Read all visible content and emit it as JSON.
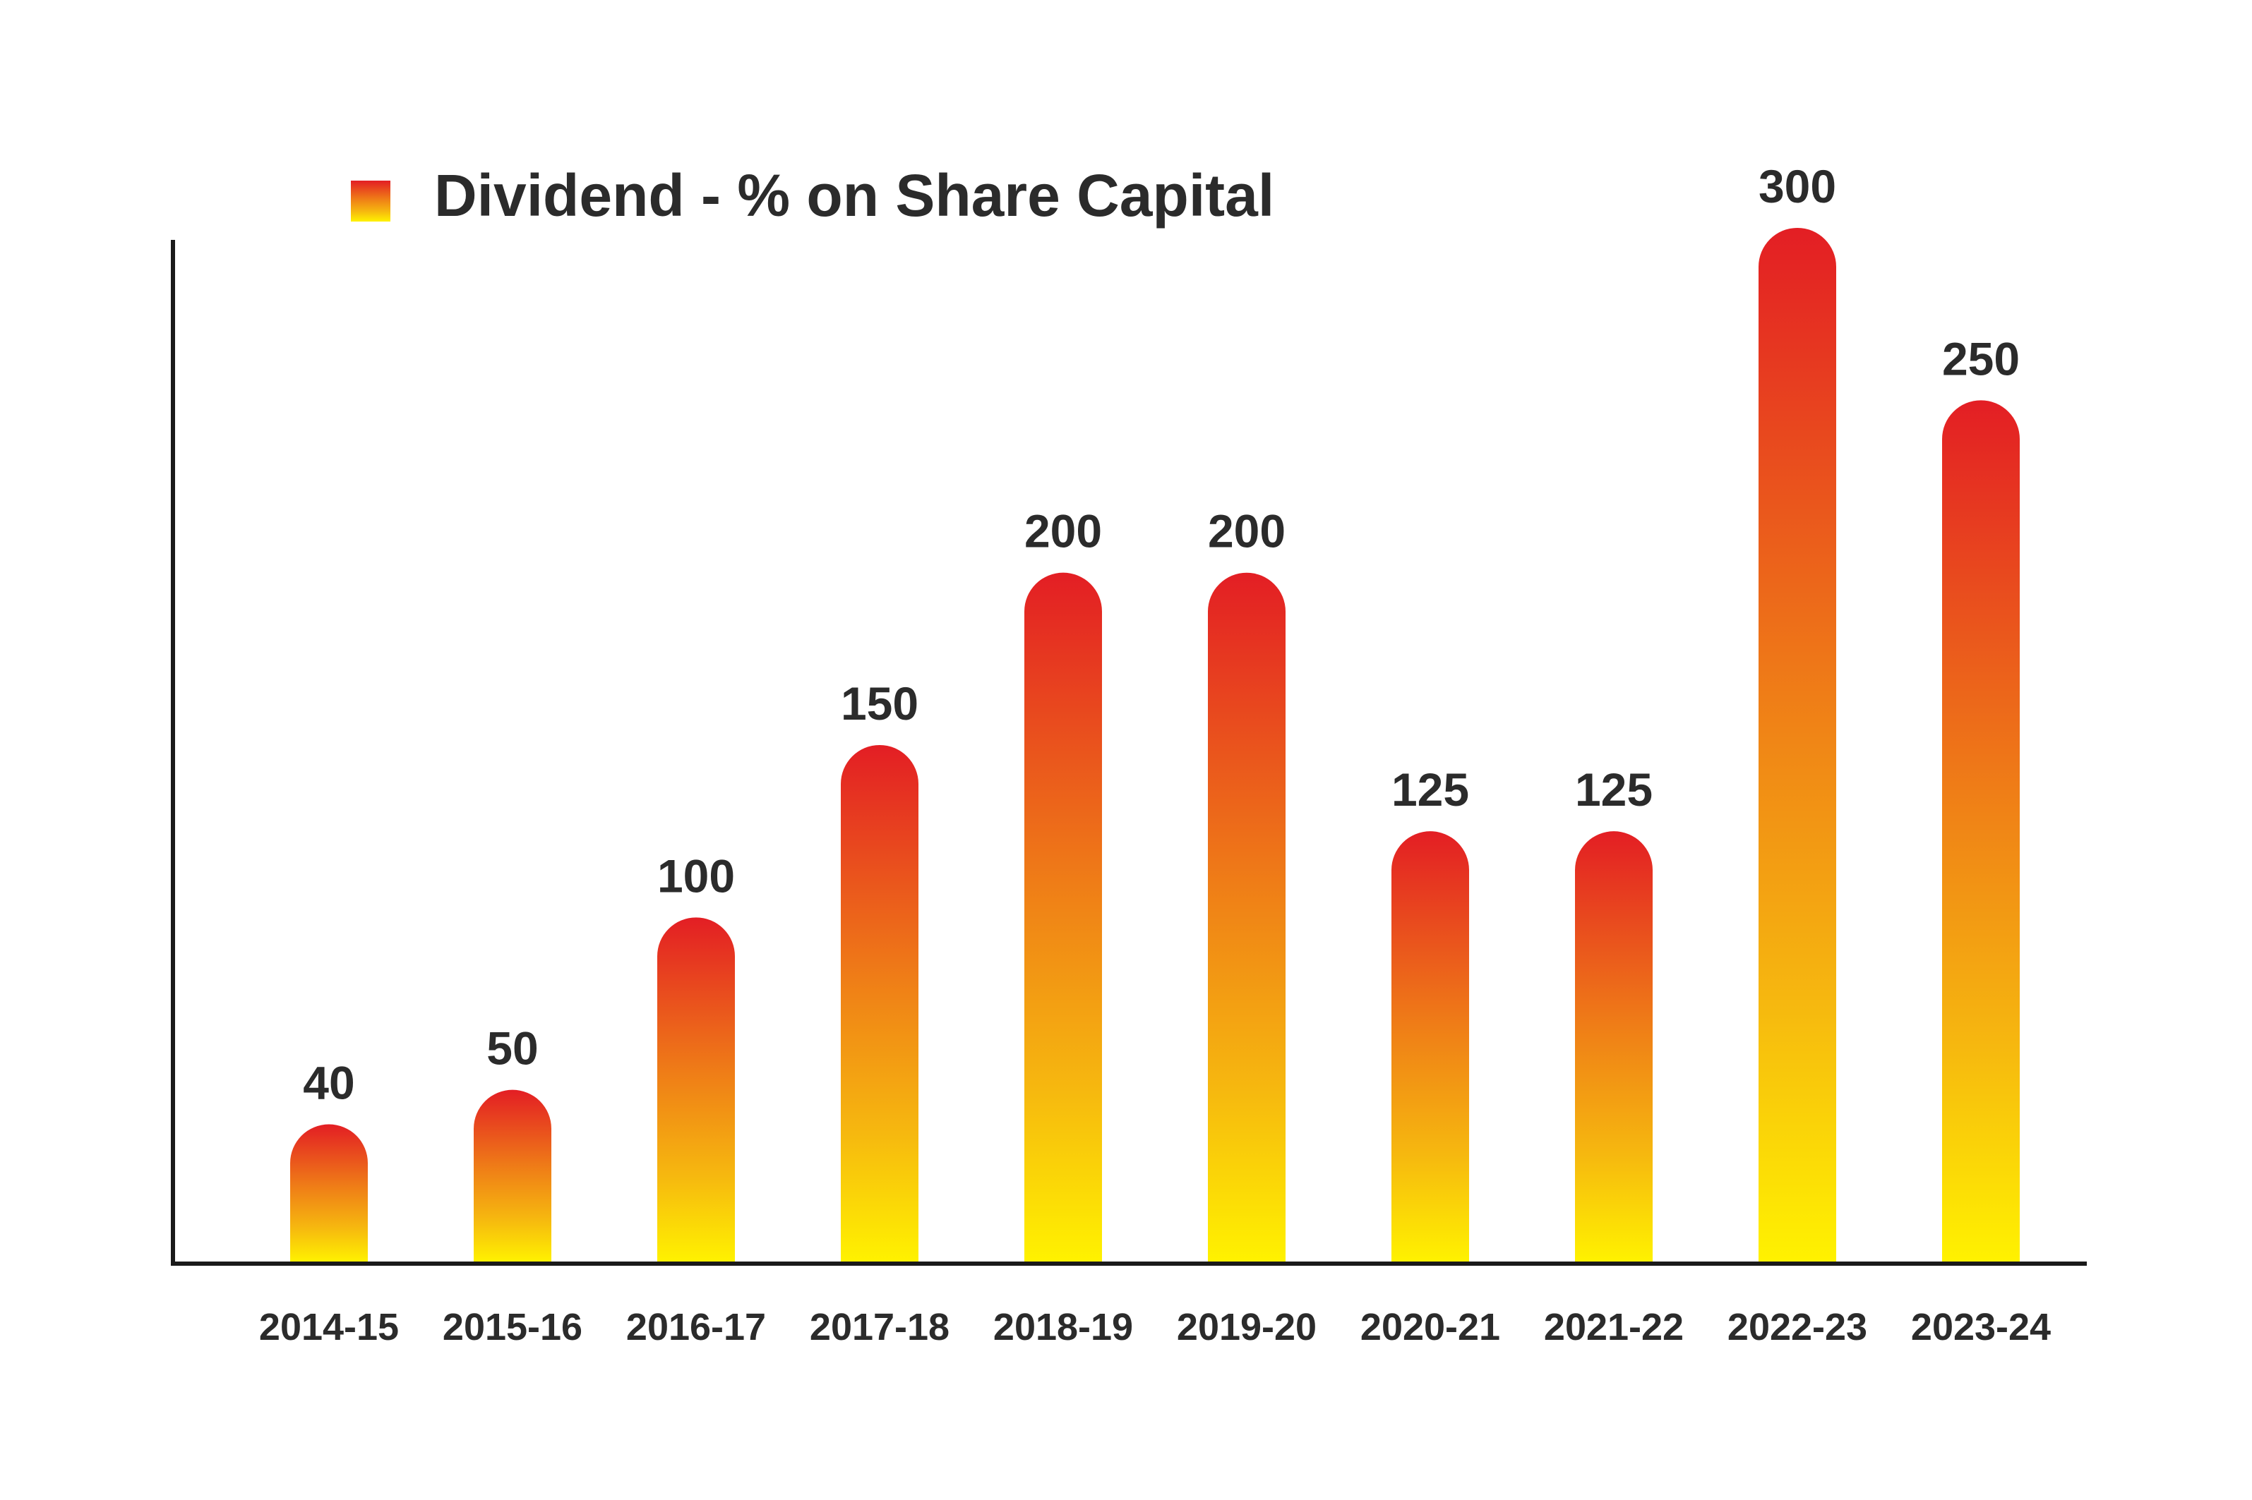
{
  "chart_data": {
    "type": "bar",
    "legend": [
      {
        "label": "Dividend - % on Share Capital"
      }
    ],
    "categories": [
      "2014-15",
      "2015-16",
      "2016-17",
      "2017-18",
      "2018-19",
      "2019-20",
      "2020-21",
      "2021-22",
      "2022-23",
      "2023-24"
    ],
    "series": [
      {
        "name": "Dividend - % on Share Capital",
        "values": [
          40,
          50,
          100,
          150,
          200,
          200,
          125,
          125,
          300,
          250
        ]
      }
    ],
    "data_labels": [
      "40",
      "50",
      "100",
      "150",
      "200",
      "200",
      "125",
      "125",
      "300",
      "250"
    ],
    "ylim": [
      0,
      300
    ],
    "grid": false,
    "legend_position": "top-left",
    "colors": {
      "bar_top": "#e31e24",
      "bar_mid": "#ef7d17",
      "bar_bottom": "#fff200",
      "axis": "#1a1a1a",
      "text": "#2b2b2b"
    }
  }
}
